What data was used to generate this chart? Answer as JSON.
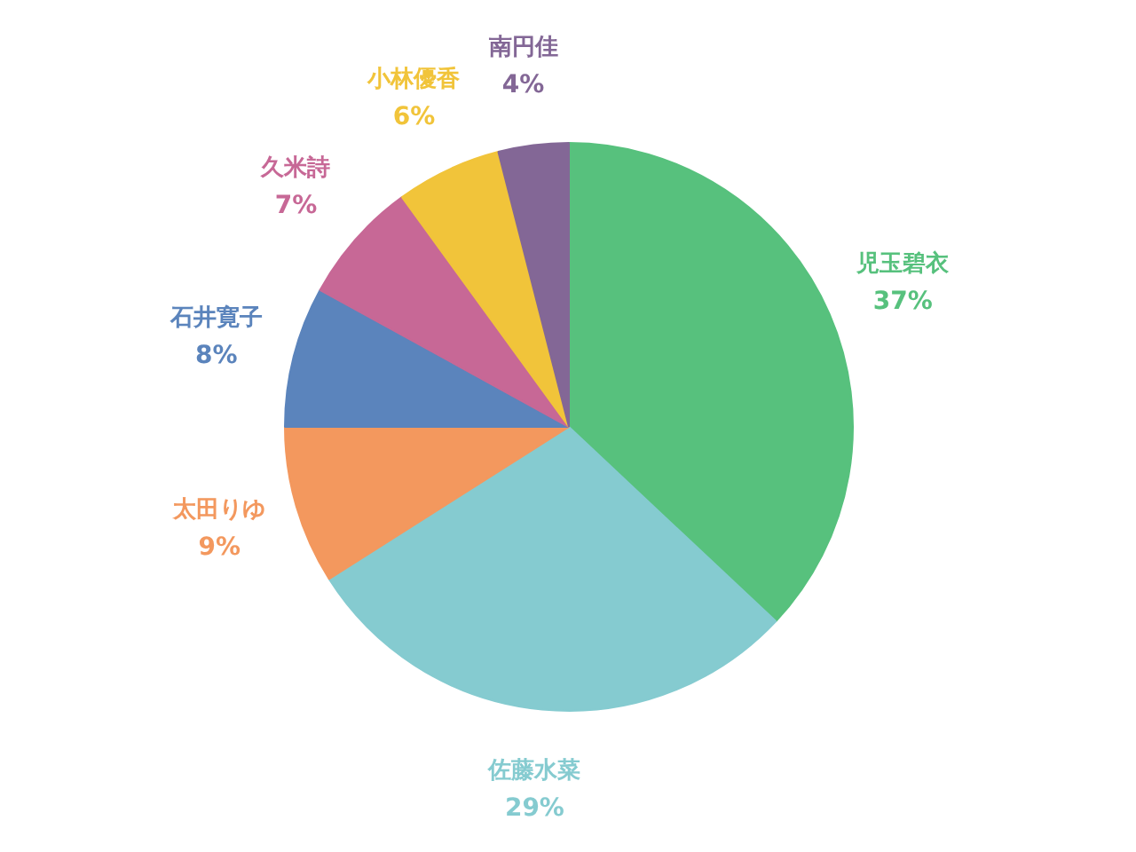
{
  "chart_data": {
    "type": "pie",
    "categories": [
      "児玉碧衣",
      "佐藤水菜",
      "太田りゆ",
      "石井寛子",
      "久米詩",
      "小林優香",
      "南円佳"
    ],
    "values": [
      37,
      29,
      9,
      8,
      7,
      6,
      4
    ],
    "colors": [
      "#57c17d",
      "#85cbd0",
      "#f3985e",
      "#5b84bc",
      "#c76896",
      "#f1c43a",
      "#836796"
    ],
    "value_labels": [
      "37%",
      "29%",
      "9%",
      "8%",
      "7%",
      "6%",
      "4%"
    ]
  }
}
